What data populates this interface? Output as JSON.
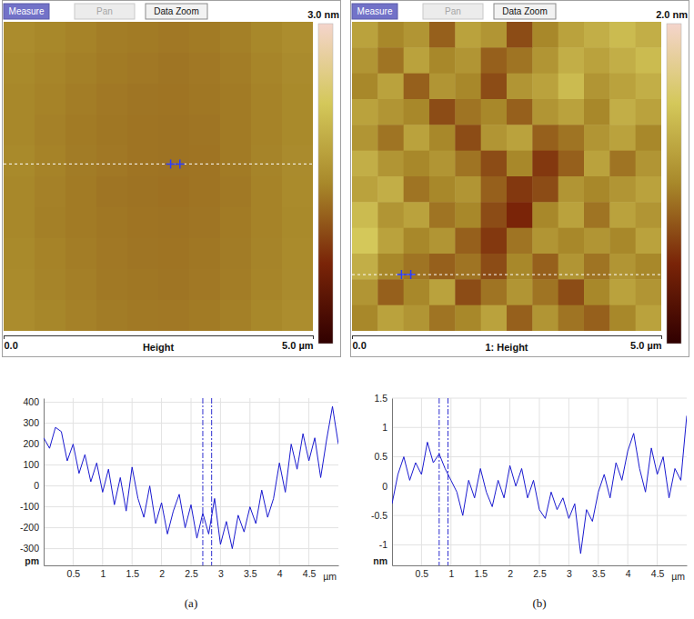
{
  "chart_data": [
    {
      "type": "heatmap",
      "title": "Height",
      "buttons": [
        "Measure",
        "Pan",
        "Data Zoom"
      ],
      "xlim": [
        0,
        5
      ],
      "ylim": [
        0,
        5
      ],
      "xticks": [
        {
          "value": 0,
          "label": "0.0"
        },
        {
          "value": 5,
          "label": "5.0 µm"
        }
      ],
      "color_range": [
        0,
        3
      ],
      "color_ticks": [
        {
          "value": 3,
          "label": "3.0 nm"
        }
      ],
      "profile_y": 2.7,
      "cursors": [
        2.7,
        2.85
      ],
      "cells": [
        [
          1.55,
          1.5,
          1.46,
          1.42,
          1.4,
          1.38,
          1.4,
          1.44,
          1.5,
          1.56
        ],
        [
          1.52,
          1.48,
          1.44,
          1.4,
          1.38,
          1.36,
          1.38,
          1.42,
          1.48,
          1.54
        ],
        [
          1.5,
          1.46,
          1.42,
          1.38,
          1.36,
          1.35,
          1.37,
          1.4,
          1.46,
          1.52
        ],
        [
          1.5,
          1.45,
          1.4,
          1.37,
          1.35,
          1.34,
          1.36,
          1.4,
          1.46,
          1.52
        ],
        [
          1.52,
          1.46,
          1.41,
          1.38,
          1.35,
          1.34,
          1.35,
          1.4,
          1.47,
          1.54
        ],
        [
          1.5,
          1.45,
          1.4,
          1.36,
          1.34,
          1.33,
          1.35,
          1.39,
          1.46,
          1.53
        ],
        [
          1.5,
          1.44,
          1.4,
          1.37,
          1.35,
          1.34,
          1.36,
          1.4,
          1.46,
          1.52
        ],
        [
          1.52,
          1.46,
          1.42,
          1.38,
          1.36,
          1.35,
          1.37,
          1.41,
          1.47,
          1.53
        ],
        [
          1.53,
          1.47,
          1.43,
          1.39,
          1.37,
          1.36,
          1.38,
          1.42,
          1.48,
          1.54
        ],
        [
          1.55,
          1.49,
          1.45,
          1.41,
          1.39,
          1.38,
          1.4,
          1.44,
          1.5,
          1.56
        ]
      ]
    },
    {
      "type": "line",
      "caption": "(a)",
      "xlabel": "µm",
      "ylabel": "pm",
      "grid": true,
      "xlim": [
        0,
        5
      ],
      "ylim": [
        -380,
        420
      ],
      "xticks": [
        0.5,
        1,
        1.5,
        2,
        2.5,
        3,
        3.5,
        4,
        4.5
      ],
      "yticks": [
        400,
        300,
        200,
        100,
        0,
        -100,
        -200,
        -300
      ],
      "cursors": [
        2.7,
        2.85
      ],
      "x": [
        0,
        0.1,
        0.2,
        0.3,
        0.4,
        0.5,
        0.6,
        0.7,
        0.8,
        0.9,
        1,
        1.1,
        1.2,
        1.3,
        1.4,
        1.5,
        1.6,
        1.7,
        1.8,
        1.9,
        2,
        2.1,
        2.2,
        2.3,
        2.4,
        2.5,
        2.6,
        2.7,
        2.8,
        2.9,
        3,
        3.1,
        3.2,
        3.3,
        3.4,
        3.5,
        3.6,
        3.7,
        3.8,
        3.9,
        4,
        4.1,
        4.2,
        4.3,
        4.4,
        4.5,
        4.6,
        4.7,
        4.8,
        4.9,
        5
      ],
      "series": [
        {
          "color": "#1a1ad0",
          "values": [
            230,
            180,
            280,
            260,
            120,
            200,
            60,
            150,
            20,
            110,
            -30,
            80,
            -90,
            40,
            -120,
            90,
            -60,
            -150,
            0,
            -180,
            -80,
            -230,
            -120,
            -40,
            -200,
            -90,
            -250,
            -130,
            -230,
            -60,
            -280,
            -170,
            -300,
            -140,
            -220,
            -100,
            -180,
            -20,
            -150,
            -60,
            110,
            -30,
            200,
            80,
            250,
            120,
            230,
            40,
            220,
            380,
            200
          ]
        }
      ]
    },
    {
      "type": "heatmap",
      "title": "1: Height",
      "buttons": [
        "Measure",
        "Pan",
        "Data Zoom"
      ],
      "xlim": [
        0,
        5
      ],
      "ylim": [
        0,
        5
      ],
      "xticks": [
        {
          "value": 0,
          "label": "0.0"
        },
        {
          "value": 5,
          "label": "5.0 µm"
        }
      ],
      "color_range": [
        0,
        2
      ],
      "color_ticks": [
        {
          "value": 2,
          "label": "2.0 nm"
        }
      ],
      "profile_y": 0.91,
      "cursors": [
        0.8,
        0.95
      ],
      "cells": [
        [
          1.2,
          1.0,
          1.1,
          0.8,
          1.2,
          1.1,
          0.7,
          1.0,
          1.2,
          1.3,
          1.4,
          1.3
        ],
        [
          1.1,
          0.9,
          1.2,
          1.0,
          1.1,
          0.8,
          0.9,
          1.1,
          1.3,
          1.2,
          1.3,
          1.4
        ],
        [
          1.0,
          1.2,
          0.8,
          1.1,
          1.0,
          0.7,
          1.1,
          1.2,
          1.4,
          1.1,
          1.2,
          1.3
        ],
        [
          1.2,
          1.1,
          1.0,
          0.7,
          0.9,
          1.0,
          0.8,
          1.1,
          1.2,
          1.0,
          1.3,
          1.2
        ],
        [
          1.1,
          0.9,
          1.2,
          1.0,
          0.7,
          1.1,
          1.2,
          0.8,
          0.9,
          1.1,
          1.2,
          1.0
        ],
        [
          1.3,
          1.1,
          1.0,
          1.1,
          0.9,
          0.7,
          1.0,
          0.6,
          0.8,
          1.2,
          0.9,
          1.1
        ],
        [
          1.2,
          1.3,
          0.9,
          1.0,
          1.1,
          0.8,
          0.6,
          0.7,
          1.1,
          1.0,
          1.1,
          1.2
        ],
        [
          1.4,
          1.1,
          1.2,
          0.9,
          1.0,
          0.7,
          0.5,
          1.0,
          1.2,
          0.9,
          1.2,
          1.1
        ],
        [
          1.5,
          1.2,
          1.0,
          1.1,
          0.8,
          0.6,
          0.9,
          1.1,
          1.0,
          1.1,
          1.0,
          1.2
        ],
        [
          1.3,
          1.0,
          0.9,
          0.8,
          0.9,
          0.7,
          1.0,
          0.8,
          1.1,
          0.9,
          1.1,
          1.0
        ],
        [
          1.1,
          0.8,
          1.0,
          1.2,
          0.7,
          0.9,
          1.1,
          0.9,
          0.7,
          1.0,
          1.2,
          1.1
        ],
        [
          1.0,
          1.2,
          1.1,
          0.9,
          1.0,
          1.2,
          0.8,
          1.1,
          0.9,
          0.8,
          1.0,
          1.2
        ]
      ]
    },
    {
      "type": "line",
      "caption": "(b)",
      "xlabel": "µm",
      "ylabel": "nm",
      "grid": true,
      "xlim": [
        0,
        5
      ],
      "ylim": [
        -1.35,
        1.5
      ],
      "xticks": [
        0.5,
        1,
        1.5,
        2,
        2.5,
        3,
        3.5,
        4,
        4.5
      ],
      "yticks": [
        1.5,
        1,
        0.5,
        0,
        -0.5,
        -1
      ],
      "cursors": [
        0.8,
        0.95
      ],
      "x": [
        0,
        0.1,
        0.2,
        0.3,
        0.4,
        0.5,
        0.6,
        0.7,
        0.8,
        0.9,
        1,
        1.1,
        1.2,
        1.3,
        1.4,
        1.5,
        1.6,
        1.7,
        1.8,
        1.9,
        2,
        2.1,
        2.2,
        2.3,
        2.4,
        2.5,
        2.6,
        2.7,
        2.8,
        2.9,
        3,
        3.1,
        3.2,
        3.3,
        3.4,
        3.5,
        3.6,
        3.7,
        3.8,
        3.9,
        4,
        4.1,
        4.2,
        4.3,
        4.4,
        4.5,
        4.6,
        4.7,
        4.8,
        4.9,
        5
      ],
      "series": [
        {
          "color": "#1a1ad0",
          "values": [
            -0.3,
            0.2,
            0.5,
            0.1,
            0.4,
            0.2,
            0.75,
            0.4,
            0.55,
            0.3,
            0.1,
            -0.1,
            -0.5,
            0.1,
            -0.2,
            0.3,
            -0.1,
            -0.35,
            0.1,
            -0.2,
            0.35,
            0,
            0.3,
            -0.2,
            0.1,
            -0.4,
            -0.55,
            -0.1,
            -0.4,
            -0.2,
            -0.55,
            -0.3,
            -1.15,
            -0.4,
            -0.6,
            -0.1,
            0.2,
            -0.2,
            0.4,
            0.1,
            0.6,
            0.9,
            0.3,
            -0.1,
            0.65,
            0.2,
            0.5,
            -0.2,
            0.3,
            0.1,
            1.2
          ]
        }
      ]
    }
  ]
}
